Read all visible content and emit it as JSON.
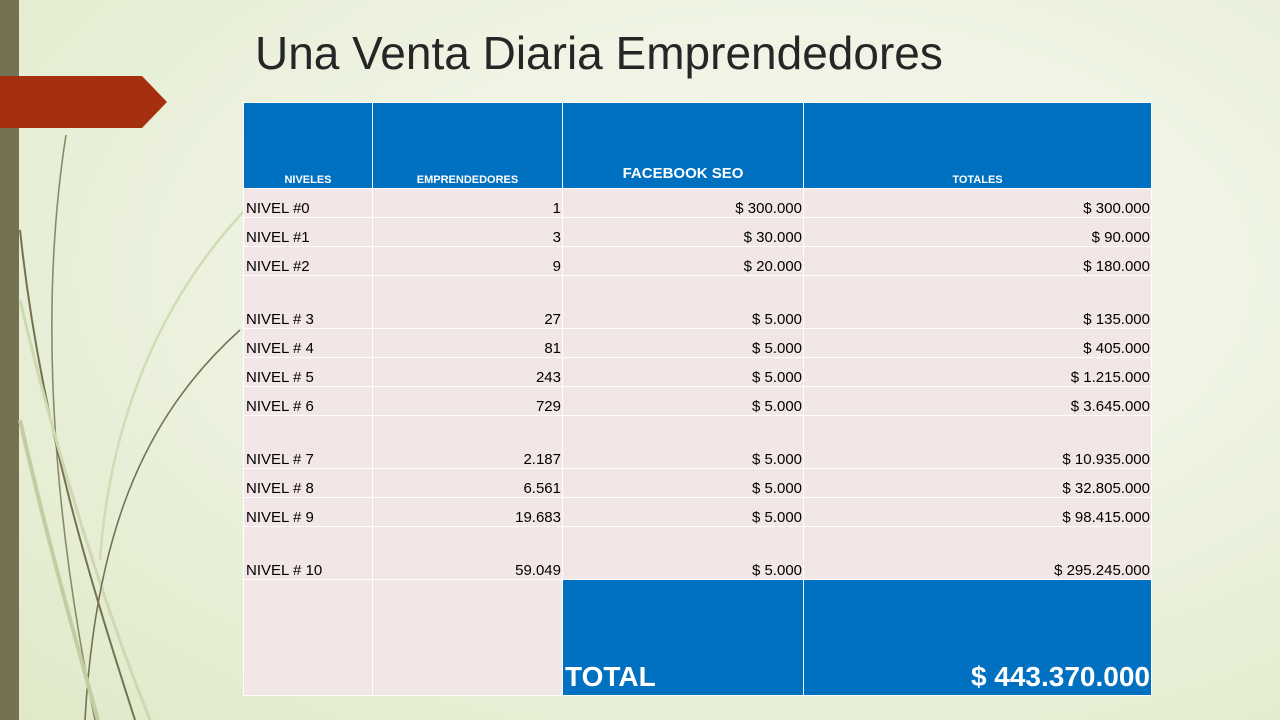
{
  "slide": {
    "title": "Una Venta Diaria Emprendedores",
    "colors": {
      "accent": "#a5300f",
      "header_blue": "#0070c0",
      "left_bar": "#757251",
      "cell_bg": "#f2e6e6"
    }
  },
  "table": {
    "headers": [
      "NIVELES",
      "EMPRENDEDORES",
      "FACEBOOK SEO",
      "TOTALES"
    ],
    "rows": [
      [
        "NIVEL #0",
        "1",
        "$ 300.000",
        "$ 300.000"
      ],
      [
        "NIVEL #1",
        "3",
        "$ 30.000",
        "$ 90.000"
      ],
      [
        "NIVEL #2",
        "9",
        "$ 20.000",
        "$ 180.000"
      ],
      [
        "NIVEL # 3",
        "27",
        "$ 5.000",
        "$ 135.000"
      ],
      [
        "NIVEL # 4",
        "81",
        "$ 5.000",
        "$ 405.000"
      ],
      [
        "NIVEL # 5",
        "243",
        "$ 5.000",
        "$ 1.215.000"
      ],
      [
        "NIVEL # 6",
        "729",
        "$ 5.000",
        "$ 3.645.000"
      ],
      [
        "NIVEL # 7",
        "2.187",
        "$ 5.000",
        "$ 10.935.000"
      ],
      [
        "NIVEL # 8",
        "6.561",
        "$ 5.000",
        "$ 32.805.000"
      ],
      [
        "NIVEL # 9",
        "19.683",
        "$ 5.000",
        "$ 98.415.000"
      ],
      [
        "NIVEL # 10",
        "59.049",
        "$ 5.000",
        "$ 295.245.000"
      ]
    ],
    "total_label": "TOTAL",
    "total_value": "$ 443.370.000"
  }
}
